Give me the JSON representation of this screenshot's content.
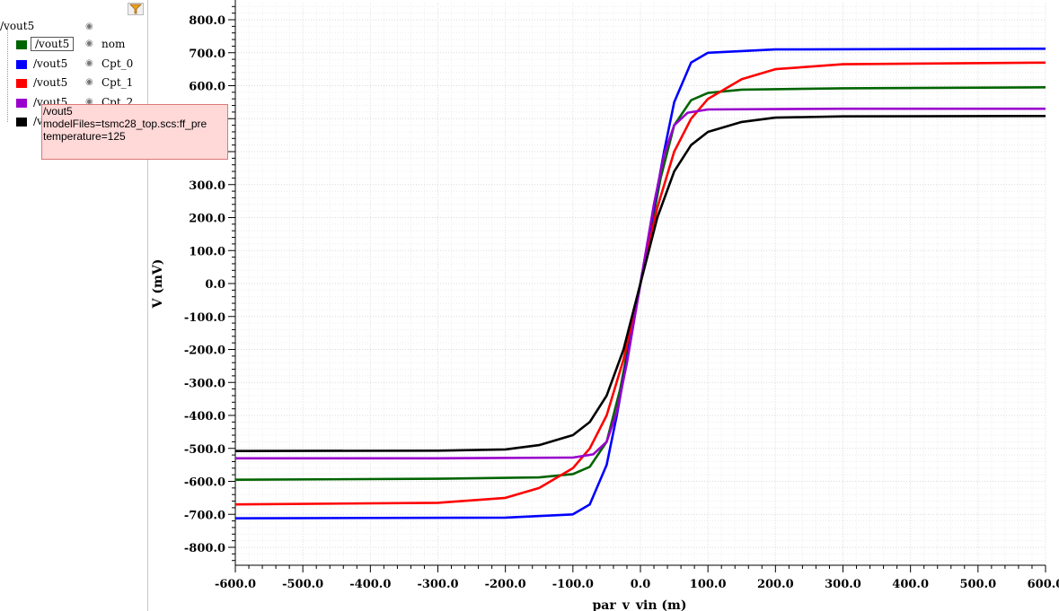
{
  "legend": {
    "root_label": "/vout5",
    "items": [
      {
        "signal": "/vout5",
        "corner": "nom",
        "color": "#006400"
      },
      {
        "signal": "/vout5",
        "corner": "Cpt_0",
        "color": "#0000ff"
      },
      {
        "signal": "/vout5",
        "corner": "Cpt_1",
        "color": "#ff0000"
      },
      {
        "signal": "/vout5",
        "corner": "Cpt_2",
        "color": "#9900cc"
      },
      {
        "signal": "/vout5",
        "corner": "",
        "color": "#000000"
      }
    ],
    "eye_icon": "eye-icon",
    "filter_icon": "funnel-icon"
  },
  "tooltip": {
    "line1": "/vout5",
    "line2": "modelFiles=tsmc28_top.scs:ff_pre",
    "line3": "temperature=125"
  },
  "chart_data": {
    "type": "line",
    "xlabel": "par_v_vin (m)",
    "ylabel": "V (mV)",
    "xlim": [
      -600,
      600
    ],
    "ylim": [
      -850,
      850
    ],
    "xticks": [
      "-600.0",
      "-500.0",
      "-400.0",
      "-300.0",
      "-200.0",
      "-100.0",
      "0.0",
      "100.0",
      "200.0",
      "300.0",
      "400.0",
      "500.0",
      "600.0"
    ],
    "yticks": [
      "800.0",
      "700.0",
      "600.0",
      "300.0",
      "200.0",
      "100.0",
      "0.0",
      "-100.0",
      "-200.0",
      "-300.0",
      "-400.0",
      "-500.0",
      "-600.0",
      "-700.0",
      "-800.0"
    ],
    "grid": true,
    "series": [
      {
        "name": "nom",
        "color": "#006400",
        "x": [
          -600,
          -300,
          -150,
          -100,
          -75,
          -50,
          -30,
          -15,
          0,
          15,
          30,
          50,
          75,
          100,
          150,
          300,
          600
        ],
        "y": [
          -595,
          -592,
          -588,
          -578,
          -556,
          -480,
          -320,
          -160,
          0,
          160,
          320,
          480,
          556,
          578,
          588,
          592,
          595
        ]
      },
      {
        "name": "Cpt_0",
        "color": "#0000ff",
        "x": [
          -600,
          -200,
          -100,
          -75,
          -50,
          -35,
          -20,
          -10,
          0,
          10,
          20,
          35,
          50,
          75,
          100,
          200,
          600
        ],
        "y": [
          -712,
          -710,
          -700,
          -670,
          -550,
          -400,
          -230,
          -115,
          0,
          115,
          230,
          400,
          550,
          670,
          700,
          710,
          712
        ]
      },
      {
        "name": "Cpt_1",
        "color": "#ff0000",
        "x": [
          -600,
          -300,
          -200,
          -150,
          -100,
          -75,
          -50,
          -25,
          0,
          25,
          50,
          75,
          100,
          150,
          200,
          300,
          600
        ],
        "y": [
          -670,
          -665,
          -650,
          -620,
          -560,
          -500,
          -400,
          -230,
          0,
          230,
          400,
          500,
          560,
          620,
          650,
          665,
          670
        ]
      },
      {
        "name": "Cpt_2",
        "color": "#9900cc",
        "x": [
          -600,
          -300,
          -100,
          -70,
          -50,
          -35,
          -20,
          -10,
          0,
          10,
          20,
          35,
          50,
          70,
          100,
          300,
          600
        ],
        "y": [
          -530,
          -530,
          -528,
          -518,
          -480,
          -390,
          -240,
          -120,
          0,
          120,
          240,
          390,
          480,
          518,
          528,
          530,
          530
        ]
      },
      {
        "name": "",
        "color": "#000000",
        "x": [
          -600,
          -300,
          -200,
          -150,
          -100,
          -75,
          -50,
          -25,
          0,
          25,
          50,
          75,
          100,
          150,
          200,
          300,
          600
        ],
        "y": [
          -508,
          -507,
          -503,
          -490,
          -460,
          -420,
          -340,
          -200,
          0,
          200,
          340,
          420,
          460,
          490,
          503,
          507,
          508
        ]
      }
    ]
  }
}
